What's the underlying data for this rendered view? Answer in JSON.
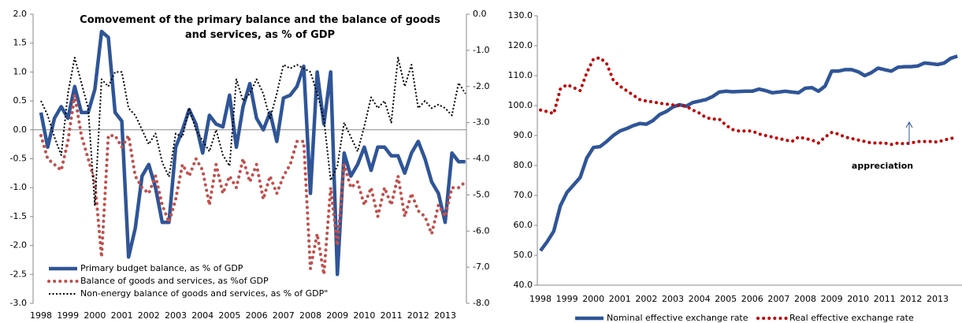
{
  "chart_data": [
    {
      "type": "line",
      "title": "Comovement of the primary balance and the balance of goods and services, as % of GDP",
      "categories": [
        "1998",
        null,
        null,
        null,
        "1999",
        null,
        null,
        null,
        "2000",
        null,
        null,
        null,
        "2001",
        null,
        null,
        null,
        "2002",
        null,
        null,
        null,
        "2003",
        null,
        null,
        null,
        "2004",
        null,
        null,
        null,
        "2005",
        null,
        null,
        null,
        "2006",
        null,
        null,
        null,
        "2007",
        null,
        null,
        null,
        "2008",
        null,
        null,
        null,
        "2009",
        null,
        null,
        null,
        "2010",
        null,
        null,
        null,
        "2011",
        null,
        null,
        null,
        "2012",
        null,
        null,
        null,
        "2013",
        null,
        null,
        null
      ],
      "series": [
        {
          "name": "Primary budget balance, as % of GDP",
          "color": "#2f5597",
          "style": "solid",
          "values": [
            0.3,
            -0.3,
            0.2,
            0.4,
            0.2,
            0.75,
            0.3,
            0.3,
            0.7,
            1.7,
            1.6,
            0.3,
            0.15,
            -2.2,
            -1.7,
            -0.8,
            -0.6,
            -1.0,
            -1.6,
            -1.6,
            -0.3,
            0.0,
            0.35,
            0.1,
            -0.4,
            0.25,
            0.1,
            0.05,
            0.6,
            -0.3,
            0.4,
            0.8,
            0.2,
            0.0,
            0.3,
            -0.2,
            0.55,
            0.6,
            0.75,
            1.1,
            -1.1,
            1.0,
            0.1,
            1.0,
            -2.5,
            -0.4,
            -0.8,
            -0.6,
            -0.3,
            -0.7,
            -0.3,
            -0.3,
            -0.45,
            -0.45,
            -0.75,
            -0.4,
            -0.2,
            -0.5,
            -0.9,
            -1.1,
            -1.6,
            -0.4,
            -0.55,
            -0.55
          ]
        },
        {
          "name": "Balance of goods and services, as %of GDP",
          "color": "#c0504d",
          "style": "dotted",
          "values": [
            -0.1,
            -0.5,
            -0.6,
            -0.7,
            -0.2,
            0.6,
            -0.1,
            -0.5,
            -0.9,
            -2.2,
            -0.1,
            -0.1,
            -0.3,
            -0.1,
            -0.8,
            -1.0,
            -1.1,
            -0.8,
            -1.3,
            -1.6,
            -1.2,
            -0.6,
            -0.8,
            -0.5,
            -0.7,
            -1.3,
            -0.6,
            -1.1,
            -0.8,
            -1.0,
            -0.5,
            -0.9,
            -0.6,
            -1.2,
            -0.8,
            -1.1,
            -0.8,
            -0.6,
            -0.2,
            -0.2,
            -2.4,
            -1.8,
            -2.5,
            -1.0,
            -2.0,
            -0.6,
            -1.0,
            -0.9,
            -1.3,
            -1.0,
            -1.5,
            -1.0,
            -1.3,
            -0.8,
            -1.5,
            -1.1,
            -1.4,
            -1.5,
            -1.8,
            -1.3,
            -1.5,
            -1.0,
            -1.0,
            -0.9
          ]
        },
        {
          "name": "Non-energy balance of goods and services, as % of GDP\"",
          "color": "#000000",
          "style": "dotted-thin",
          "axis": "y2",
          "values": [
            -2.4,
            -2.8,
            -3.4,
            -3.9,
            -2.2,
            -1.2,
            -1.9,
            -2.6,
            -5.3,
            -1.8,
            -2.0,
            -1.6,
            -1.6,
            -2.6,
            -2.8,
            -3.2,
            -3.6,
            -3.3,
            -4.1,
            -4.5,
            -3.3,
            -3.4,
            -2.6,
            -3.2,
            -3.5,
            -3.8,
            -3.2,
            -3.9,
            -4.2,
            -1.8,
            -2.4,
            -2.2,
            -1.8,
            -2.2,
            -2.9,
            -2.2,
            -1.4,
            -1.5,
            -1.4,
            -1.5,
            -1.6,
            -2.2,
            -2.9,
            -4.6,
            -4.2,
            -3.0,
            -3.4,
            -3.8,
            -3.1,
            -2.3,
            -2.6,
            -2.4,
            -3.0,
            -1.2,
            -2.0,
            -1.4,
            -2.6,
            -2.4,
            -2.6,
            -2.5,
            -2.6,
            -2.8,
            -1.9,
            -2.2
          ]
        }
      ],
      "ylim": [
        -3,
        2
      ],
      "yticks": [
        {
          "value": -3,
          "label": "-3.0"
        },
        {
          "value": -2.5,
          "label": "-2.5"
        },
        {
          "value": -2,
          "label": "-2.0"
        },
        {
          "value": -1.5,
          "label": "-1.5"
        },
        {
          "value": -1,
          "label": "-1.0"
        },
        {
          "value": -0.5,
          "label": "-0.5"
        },
        {
          "value": 0,
          "label": "0.0"
        },
        {
          "value": 0.5,
          "label": "0.5"
        },
        {
          "value": 1,
          "label": "1.0"
        },
        {
          "value": 1.5,
          "label": "1.5"
        },
        {
          "value": 2,
          "label": "2.0"
        }
      ],
      "y2lim": [
        -8,
        0
      ],
      "y2ticks": [
        {
          "value": -8,
          "label": "-8.0"
        },
        {
          "value": -7,
          "label": "-7.0"
        },
        {
          "value": -6,
          "label": "-6.0"
        },
        {
          "value": -5,
          "label": "-5.0"
        },
        {
          "value": -4,
          "label": "-4.0"
        },
        {
          "value": -3,
          "label": "-3.0"
        },
        {
          "value": -2,
          "label": "-2.0"
        },
        {
          "value": -1,
          "label": "-1.0"
        },
        {
          "value": 0,
          "label": "0.0"
        }
      ],
      "grid": false,
      "legend": "lower left"
    },
    {
      "type": "line",
      "categories": [
        "1998",
        null,
        null,
        null,
        "1999",
        null,
        null,
        null,
        "2000",
        null,
        null,
        null,
        "2001",
        null,
        null,
        null,
        "2002",
        null,
        null,
        null,
        "2003",
        null,
        null,
        null,
        "2004",
        null,
        null,
        null,
        "2005",
        null,
        null,
        null,
        "2006",
        null,
        null,
        null,
        "2007",
        null,
        null,
        null,
        "2008",
        null,
        null,
        null,
        "2009",
        null,
        null,
        null,
        "2010",
        null,
        null,
        null,
        "2011",
        null,
        null,
        null,
        "2012",
        null,
        null,
        null,
        "2013",
        null,
        null,
        null
      ],
      "series": [
        {
          "name": "Nominal effective exchange rate",
          "color": "#2f5597",
          "style": "solid",
          "values": [
            51.5,
            54.5,
            58,
            66.5,
            71,
            73.5,
            76,
            82.5,
            86,
            86.3,
            88,
            90,
            91.5,
            92.3,
            93.3,
            94,
            93.8,
            95,
            97,
            98,
            99.5,
            100.3,
            99.8,
            101,
            101.5,
            102,
            103,
            104.5,
            104.8,
            104.6,
            104.7,
            104.8,
            104.8,
            105.5,
            105,
            104.3,
            104.5,
            104.8,
            104.5,
            104.3,
            105.8,
            106,
            104.8,
            106.5,
            111.5,
            111.5,
            112,
            112,
            111.3,
            110,
            111,
            112.5,
            112,
            111.5,
            112.8,
            113,
            113,
            113.2,
            114.2,
            114,
            113.7,
            114.2,
            115.8,
            116.5
          ]
        },
        {
          "name": "Real effective exchange rate",
          "color": "#c00000",
          "style": "dotted",
          "values": [
            98.5,
            98,
            97.3,
            105.5,
            107,
            106,
            105,
            111,
            115.5,
            116,
            114,
            108.5,
            106.5,
            105,
            103.5,
            102,
            101.5,
            101.2,
            100.8,
            100.5,
            100.2,
            100,
            99.8,
            98.5,
            97.5,
            96,
            95.5,
            95.5,
            93.5,
            92,
            91.5,
            91.5,
            91.5,
            90.5,
            90,
            89.5,
            89,
            88.5,
            88,
            89.5,
            89,
            88.5,
            87.5,
            89.5,
            91,
            90.5,
            89.5,
            89,
            88.5,
            88,
            87.5,
            87.5,
            87.5,
            87,
            87.5,
            87.2,
            87.5,
            88,
            88,
            88,
            87.8,
            88.5,
            89,
            89.5
          ]
        }
      ],
      "ylim": [
        40,
        130
      ],
      "yticks": [
        {
          "value": 40,
          "label": "40.0"
        },
        {
          "value": 50,
          "label": "50.0"
        },
        {
          "value": 60,
          "label": "60.0"
        },
        {
          "value": 70,
          "label": "70.0"
        },
        {
          "value": 80,
          "label": "80.0"
        },
        {
          "value": 90,
          "label": "90.0"
        },
        {
          "value": 100,
          "label": "100.0"
        },
        {
          "value": 110,
          "label": "110.0"
        },
        {
          "value": 120,
          "label": "120.0"
        },
        {
          "value": 130,
          "label": "130.0"
        }
      ],
      "annotation": "appreciation",
      "grid": false,
      "legend": "bottom"
    }
  ]
}
